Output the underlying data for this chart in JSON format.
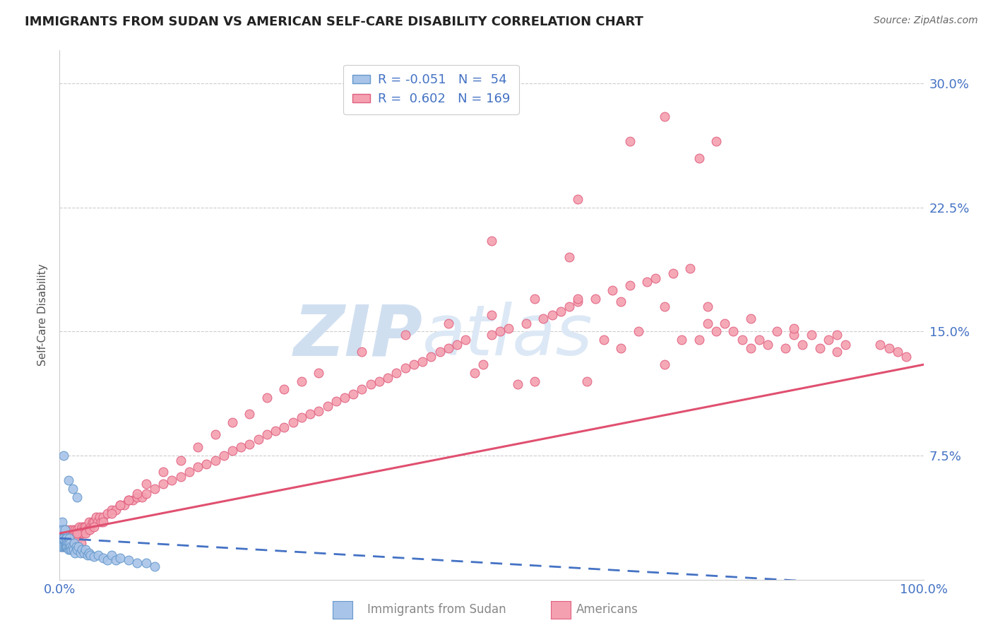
{
  "title": "IMMIGRANTS FROM SUDAN VS AMERICAN SELF-CARE DISABILITY CORRELATION CHART",
  "source": "Source: ZipAtlas.com",
  "xlabel_sudan": "Immigrants from Sudan",
  "xlabel_americans": "Americans",
  "ylabel": "Self-Care Disability",
  "R_sudan": -0.051,
  "N_sudan": 54,
  "R_americans": 0.602,
  "N_americans": 169,
  "xlim": [
    0.0,
    1.0
  ],
  "ylim": [
    0.0,
    0.32
  ],
  "yticks": [
    0.0,
    0.075,
    0.15,
    0.225,
    0.3
  ],
  "ytick_labels": [
    "",
    "7.5%",
    "15.0%",
    "22.5%",
    "30.0%"
  ],
  "xtick_labels": [
    "0.0%",
    "100.0%"
  ],
  "background_color": "#ffffff",
  "title_color": "#222222",
  "title_fontsize": 13,
  "axis_color": "#4472c4",
  "scatter_sudan_color": "#a8c4e8",
  "scatter_sudan_edge": "#6699cc",
  "scatter_americans_color": "#f4a0b0",
  "scatter_americans_edge": "#e06080",
  "line_sudan_color": "#4472c4",
  "line_americans_color": "#e05070",
  "grid_color": "#cccccc",
  "watermark_color": "#d0dff0",
  "legend_sudan_color": "#a8c4e8",
  "legend_sudan_edge": "#6699cc",
  "legend_americans_color": "#f4a0b0",
  "legend_americans_edge": "#e06080",
  "sudan_x": [
    0.001,
    0.002,
    0.002,
    0.003,
    0.003,
    0.004,
    0.004,
    0.005,
    0.005,
    0.006,
    0.006,
    0.007,
    0.007,
    0.008,
    0.008,
    0.009,
    0.009,
    0.01,
    0.01,
    0.011,
    0.011,
    0.012,
    0.012,
    0.013,
    0.014,
    0.015,
    0.016,
    0.017,
    0.018,
    0.019,
    0.02,
    0.022,
    0.024,
    0.026,
    0.028,
    0.03,
    0.032,
    0.034,
    0.036,
    0.04,
    0.045,
    0.05,
    0.055,
    0.06,
    0.065,
    0.07,
    0.08,
    0.09,
    0.1,
    0.11,
    0.01,
    0.015,
    0.02,
    0.005
  ],
  "sudan_y": [
    0.02,
    0.025,
    0.03,
    0.02,
    0.035,
    0.025,
    0.03,
    0.02,
    0.025,
    0.02,
    0.03,
    0.025,
    0.02,
    0.025,
    0.02,
    0.022,
    0.02,
    0.018,
    0.022,
    0.02,
    0.025,
    0.018,
    0.022,
    0.02,
    0.018,
    0.02,
    0.018,
    0.022,
    0.016,
    0.02,
    0.018,
    0.02,
    0.016,
    0.018,
    0.016,
    0.018,
    0.015,
    0.016,
    0.015,
    0.014,
    0.015,
    0.013,
    0.012,
    0.015,
    0.012,
    0.013,
    0.012,
    0.01,
    0.01,
    0.008,
    0.06,
    0.055,
    0.05,
    0.075
  ],
  "americans_x": [
    0.002,
    0.003,
    0.004,
    0.005,
    0.006,
    0.007,
    0.008,
    0.009,
    0.01,
    0.011,
    0.012,
    0.013,
    0.014,
    0.015,
    0.016,
    0.017,
    0.018,
    0.019,
    0.02,
    0.021,
    0.022,
    0.023,
    0.024,
    0.025,
    0.026,
    0.027,
    0.028,
    0.029,
    0.03,
    0.032,
    0.034,
    0.036,
    0.038,
    0.04,
    0.042,
    0.044,
    0.046,
    0.048,
    0.05,
    0.055,
    0.06,
    0.065,
    0.07,
    0.075,
    0.08,
    0.085,
    0.09,
    0.095,
    0.1,
    0.11,
    0.12,
    0.13,
    0.14,
    0.15,
    0.16,
    0.17,
    0.18,
    0.19,
    0.2,
    0.21,
    0.22,
    0.23,
    0.24,
    0.25,
    0.26,
    0.27,
    0.28,
    0.29,
    0.3,
    0.31,
    0.32,
    0.33,
    0.34,
    0.35,
    0.36,
    0.37,
    0.38,
    0.39,
    0.4,
    0.41,
    0.42,
    0.43,
    0.44,
    0.45,
    0.46,
    0.47,
    0.48,
    0.49,
    0.5,
    0.51,
    0.52,
    0.53,
    0.54,
    0.55,
    0.56,
    0.57,
    0.58,
    0.59,
    0.6,
    0.61,
    0.62,
    0.63,
    0.64,
    0.65,
    0.66,
    0.67,
    0.68,
    0.69,
    0.7,
    0.71,
    0.72,
    0.73,
    0.74,
    0.75,
    0.76,
    0.77,
    0.78,
    0.79,
    0.8,
    0.81,
    0.82,
    0.83,
    0.84,
    0.85,
    0.86,
    0.87,
    0.88,
    0.89,
    0.9,
    0.91,
    0.01,
    0.015,
    0.02,
    0.025,
    0.03,
    0.035,
    0.04,
    0.05,
    0.06,
    0.07,
    0.08,
    0.09,
    0.1,
    0.12,
    0.14,
    0.16,
    0.18,
    0.2,
    0.22,
    0.24,
    0.26,
    0.28,
    0.3,
    0.35,
    0.4,
    0.45,
    0.5,
    0.55,
    0.6,
    0.65,
    0.7,
    0.75,
    0.8,
    0.85,
    0.9,
    0.95,
    0.96,
    0.97,
    0.98
  ],
  "americans_y": [
    0.025,
    0.02,
    0.025,
    0.022,
    0.028,
    0.025,
    0.03,
    0.022,
    0.028,
    0.025,
    0.03,
    0.025,
    0.028,
    0.03,
    0.025,
    0.028,
    0.03,
    0.025,
    0.03,
    0.025,
    0.028,
    0.032,
    0.028,
    0.03,
    0.032,
    0.028,
    0.032,
    0.03,
    0.032,
    0.03,
    0.035,
    0.032,
    0.035,
    0.035,
    0.038,
    0.035,
    0.038,
    0.035,
    0.038,
    0.04,
    0.042,
    0.042,
    0.045,
    0.045,
    0.048,
    0.048,
    0.05,
    0.05,
    0.052,
    0.055,
    0.058,
    0.06,
    0.062,
    0.065,
    0.068,
    0.07,
    0.072,
    0.075,
    0.078,
    0.08,
    0.082,
    0.085,
    0.088,
    0.09,
    0.092,
    0.095,
    0.098,
    0.1,
    0.102,
    0.105,
    0.108,
    0.11,
    0.112,
    0.115,
    0.118,
    0.12,
    0.122,
    0.125,
    0.128,
    0.13,
    0.132,
    0.135,
    0.138,
    0.14,
    0.142,
    0.145,
    0.125,
    0.13,
    0.148,
    0.15,
    0.152,
    0.118,
    0.155,
    0.12,
    0.158,
    0.16,
    0.162,
    0.165,
    0.168,
    0.12,
    0.17,
    0.145,
    0.175,
    0.14,
    0.178,
    0.15,
    0.18,
    0.182,
    0.13,
    0.185,
    0.145,
    0.188,
    0.145,
    0.155,
    0.15,
    0.155,
    0.15,
    0.145,
    0.14,
    0.145,
    0.142,
    0.15,
    0.14,
    0.148,
    0.142,
    0.148,
    0.14,
    0.145,
    0.138,
    0.142,
    0.025,
    0.022,
    0.028,
    0.022,
    0.028,
    0.03,
    0.032,
    0.035,
    0.04,
    0.045,
    0.048,
    0.052,
    0.058,
    0.065,
    0.072,
    0.08,
    0.088,
    0.095,
    0.1,
    0.11,
    0.115,
    0.12,
    0.125,
    0.138,
    0.148,
    0.155,
    0.16,
    0.17,
    0.17,
    0.168,
    0.165,
    0.165,
    0.158,
    0.152,
    0.148,
    0.142,
    0.14,
    0.138,
    0.135
  ],
  "americans_outliers_x": [
    0.5,
    0.6,
    0.66,
    0.7,
    0.74,
    0.76,
    0.59
  ],
  "americans_outliers_y": [
    0.205,
    0.23,
    0.265,
    0.28,
    0.255,
    0.265,
    0.195
  ],
  "line_am_x0": 0.0,
  "line_am_y0": 0.028,
  "line_am_x1": 1.0,
  "line_am_y1": 0.13,
  "line_su_x0": 0.0,
  "line_su_y0": 0.025,
  "line_su_x1": 1.0,
  "line_su_y1": -0.005
}
